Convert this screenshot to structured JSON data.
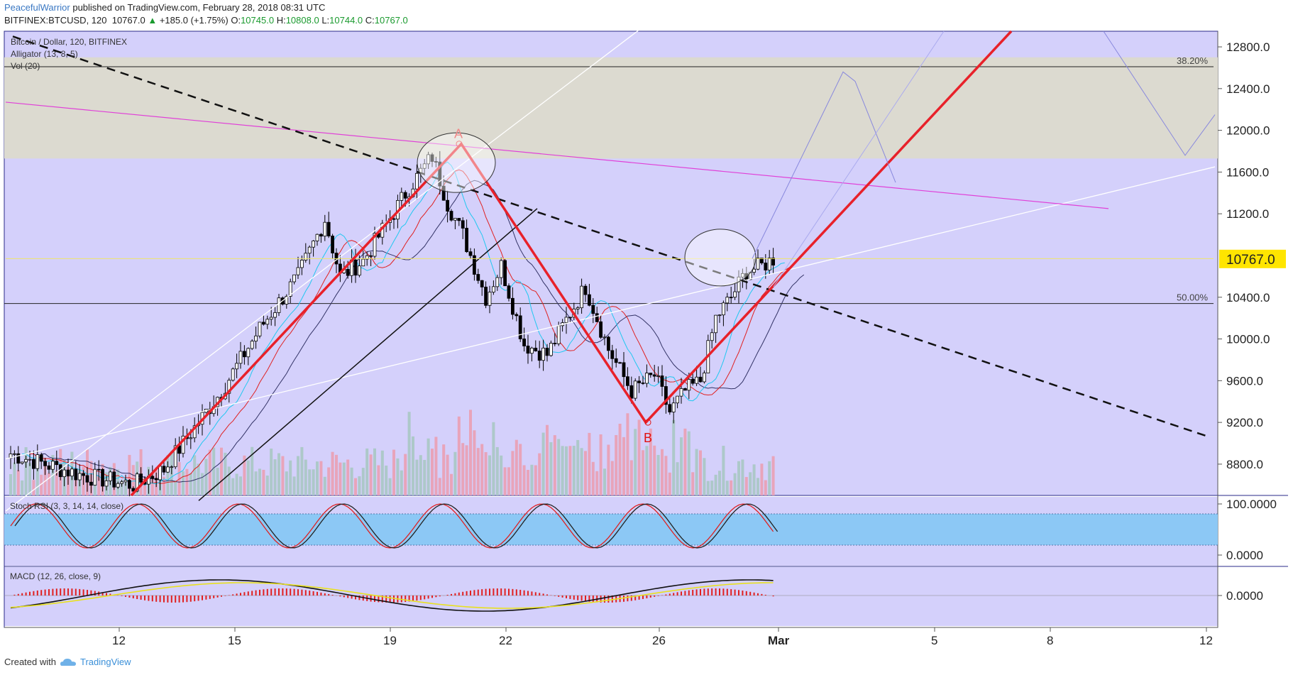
{
  "header": {
    "author": "PeacefulWarrior",
    "published": "published on TradingView.com, February 28, 2018 08:31 UTC",
    "symbol": "BITFINEX:BTCUSD, 120",
    "last": "10767.0",
    "change": "+185.0 (+1.75%)",
    "o_label": "O:",
    "o": "10745.0",
    "h_label": "H:",
    "h": "10808.0",
    "l_label": "L:",
    "l": "10744.0",
    "c_label": "C:",
    "c": "10767.0"
  },
  "legend": {
    "title": "Bitcoin / Dollar, 120, BITFINEX",
    "alligator": "Alligator (13, 8, 5)",
    "vol": "Vol (20)"
  },
  "stoch_label": "Stoch RSI (3, 3, 14, 14, close)",
  "macd_label": "MACD (12, 26, close, 9)",
  "footer": {
    "created": "Created with",
    "brand": "TradingView"
  },
  "colors": {
    "background": "#d4d0fb",
    "fib_zone": "#dcdad0",
    "bull_candle": "#ffffff",
    "bear_candle": "#000000",
    "vol_up": "#a9c7c3",
    "vol_down": "#ea9fb2",
    "trend_red": "#e8212a",
    "magenta_line": "#e040d8",
    "stoch_band": "#8cc8f5",
    "price_tag": "#ffe500"
  },
  "chart_data": {
    "type": "candlestick",
    "symbol": "BTCUSD",
    "timeframe": "120",
    "ylim": [
      8500,
      12950
    ],
    "y_ticks": [
      "12800.0",
      "12400.0",
      "12000.0",
      "11600.0",
      "11200.0",
      "10400.0",
      "10000.0",
      "9600.0",
      "9200.0",
      "8800.0"
    ],
    "x_ticks": [
      "12",
      "15",
      "19",
      "22",
      "26",
      "Mar",
      "5",
      "8",
      "12"
    ],
    "last_price": "10767.0",
    "fib_levels": [
      {
        "label": "38.20%",
        "price": 12610
      },
      {
        "label": "50.00%",
        "price": 10340
      }
    ],
    "fib_zone": [
      11730,
      12700
    ],
    "points": [
      {
        "label": "A",
        "price": 11870
      },
      {
        "label": "B",
        "price": 9200
      }
    ],
    "stoch_ticks": [
      "100.0000",
      "0.0000"
    ],
    "macd_ticks": [
      "0.0000"
    ],
    "anchors": [
      {
        "t": 0,
        "p": 8900
      },
      {
        "t": 18,
        "p": 8700
      },
      {
        "t": 32,
        "p": 8600
      },
      {
        "t": 40,
        "p": 8750
      },
      {
        "t": 55,
        "p": 9500
      },
      {
        "t": 65,
        "p": 10100
      },
      {
        "t": 75,
        "p": 10600
      },
      {
        "t": 82,
        "p": 11150
      },
      {
        "t": 86,
        "p": 10600
      },
      {
        "t": 92,
        "p": 10750
      },
      {
        "t": 98,
        "p": 11100
      },
      {
        "t": 104,
        "p": 11450
      },
      {
        "t": 110,
        "p": 11750
      },
      {
        "t": 114,
        "p": 11300
      },
      {
        "t": 118,
        "p": 11000
      },
      {
        "t": 124,
        "p": 10400
      },
      {
        "t": 128,
        "p": 10700
      },
      {
        "t": 134,
        "p": 9950
      },
      {
        "t": 140,
        "p": 9850
      },
      {
        "t": 146,
        "p": 10250
      },
      {
        "t": 150,
        "p": 10500
      },
      {
        "t": 156,
        "p": 9900
      },
      {
        "t": 162,
        "p": 9500
      },
      {
        "t": 168,
        "p": 9650
      },
      {
        "t": 172,
        "p": 9300
      },
      {
        "t": 176,
        "p": 9500
      },
      {
        "t": 180,
        "p": 9600
      },
      {
        "t": 184,
        "p": 10200
      },
      {
        "t": 188,
        "p": 10400
      },
      {
        "t": 192,
        "p": 10650
      },
      {
        "t": 196,
        "p": 10700
      },
      {
        "t": 199,
        "p": 10767
      }
    ]
  }
}
